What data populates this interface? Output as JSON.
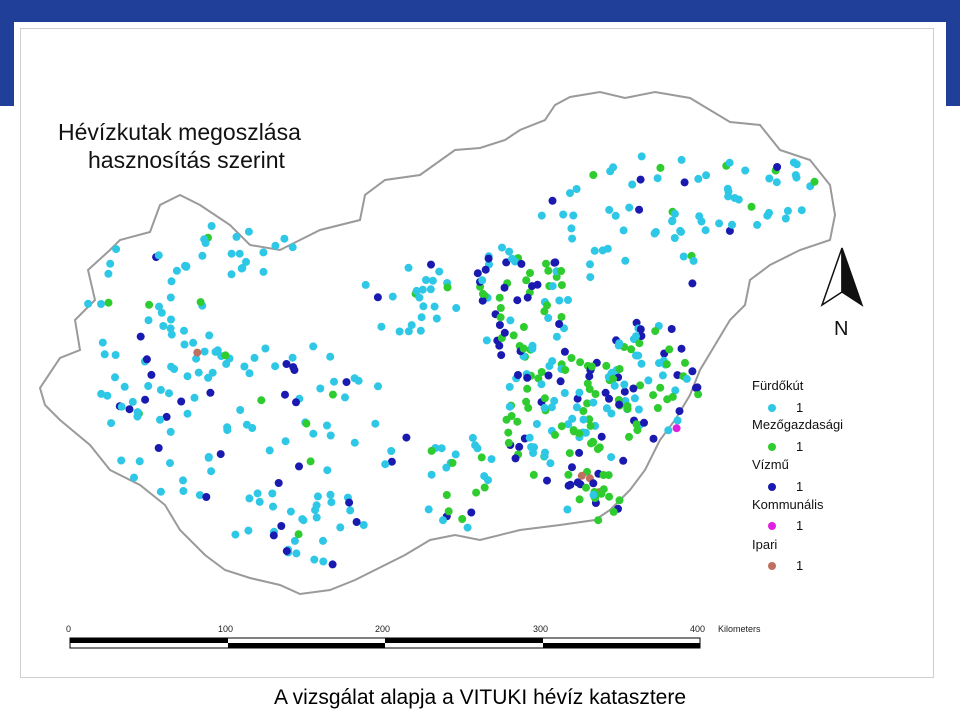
{
  "map": {
    "title_line1": "Hévízkutak megoszlása",
    "title_line2": "hasznosítás szerint",
    "north_label": "N",
    "legend": [
      {
        "label": "Fürdőkút",
        "value": "1",
        "color": "#2ec7e6"
      },
      {
        "label": "Mezőgazdasági",
        "value": "1",
        "color": "#2ecc2e"
      },
      {
        "label": "Vízmű",
        "value": "1",
        "color": "#1a1ab0"
      },
      {
        "label": "Kommunális",
        "value": "1",
        "color": "#e020e0"
      },
      {
        "label": "Ipari",
        "value": "1",
        "color": "#c07060"
      }
    ],
    "scale": {
      "ticks": [
        "0",
        "100",
        "200",
        "300",
        "400"
      ],
      "unit": "Kilometers"
    }
  },
  "caption": "A vizsgálat alapja a VITUKI hévíz katasztere"
}
